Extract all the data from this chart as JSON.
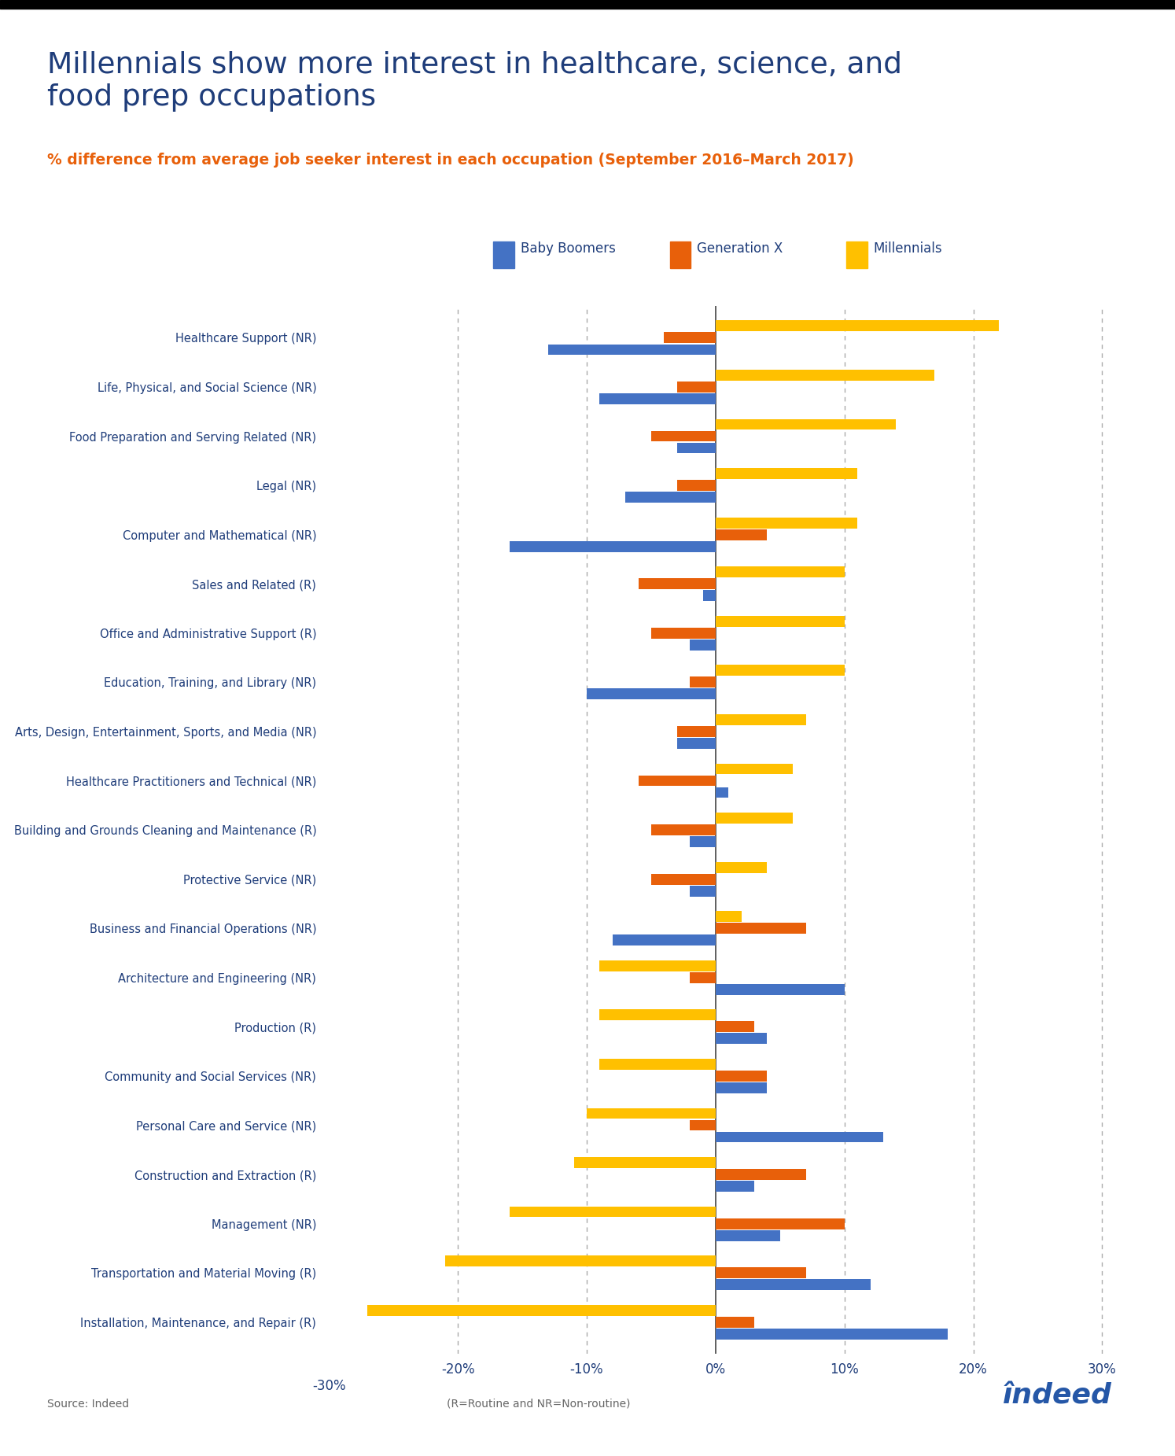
{
  "title": "Millennials show more interest in healthcare, science, and\nfood prep occupations",
  "subtitle": "% difference from average job seeker interest in each occupation (September 2016–March 2017)",
  "title_color": "#1f3d7a",
  "subtitle_color": "#e8600a",
  "background_color": "#ffffff",
  "categories": [
    "Healthcare Support (NR)",
    "Life, Physical, and Social Science (NR)",
    "Food Preparation and Serving Related (NR)",
    "Legal (NR)",
    "Computer and Mathematical (NR)",
    "Sales and Related (R)",
    "Office and Administrative Support (R)",
    "Education, Training, and Library (NR)",
    "Arts, Design, Entertainment, Sports, and Media (NR)",
    "Healthcare Practitioners and Technical (NR)",
    "Building and Grounds Cleaning and Maintenance (R)",
    "Protective Service (NR)",
    "Business and Financial Operations (NR)",
    "Architecture and Engineering (NR)",
    "Production (R)",
    "Community and Social Services (NR)",
    "Personal Care and Service (NR)",
    "Construction and Extraction (R)",
    "Management (NR)",
    "Transportation and Material Moving (R)",
    "Installation, Maintenance, and Repair (R)"
  ],
  "baby_boomers": [
    -13,
    -9,
    -3,
    -7,
    -16,
    -1,
    -2,
    -10,
    -3,
    1,
    -2,
    -2,
    -8,
    10,
    4,
    4,
    13,
    3,
    5,
    12,
    18
  ],
  "generation_x": [
    -4,
    -3,
    -5,
    -3,
    4,
    -6,
    -5,
    -2,
    -3,
    -6,
    -5,
    -5,
    7,
    -2,
    3,
    4,
    -2,
    7,
    10,
    7,
    3
  ],
  "millennials": [
    22,
    17,
    14,
    11,
    11,
    10,
    10,
    10,
    7,
    6,
    6,
    4,
    2,
    -9,
    -9,
    -9,
    -10,
    -11,
    -16,
    -21,
    -27
  ],
  "colors": {
    "baby_boomers": "#4472c4",
    "generation_x": "#e8600a",
    "millennials": "#ffc000"
  },
  "xlim": [
    -30,
    32
  ],
  "xticks": [
    -20,
    -10,
    0,
    10,
    20,
    30
  ],
  "xtick_labels": [
    "-20%",
    "-10%",
    "0%",
    "10%",
    "20%",
    "30%"
  ],
  "source_text": "Source: Indeed",
  "note_text": "(R=Routine and NR=Non-routine)",
  "indeed_color": "#2557a7"
}
